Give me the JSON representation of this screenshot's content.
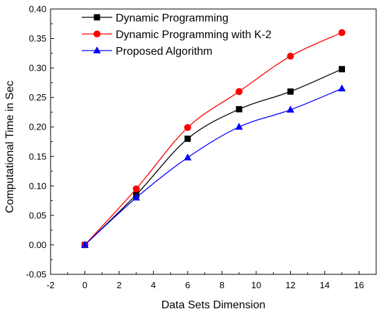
{
  "chart_data": {
    "type": "line",
    "title": "",
    "xlabel": "Data Sets Dimension",
    "ylabel": "Computational Time in Sec",
    "xlim": [
      -2,
      17
    ],
    "ylim": [
      -0.05,
      0.4
    ],
    "x_ticks": [
      "-2",
      "0",
      "2",
      "4",
      "6",
      "8",
      "10",
      "12",
      "14",
      "16"
    ],
    "y_ticks": [
      "-0.05",
      "0.00",
      "0.05",
      "0.10",
      "0.15",
      "0.20",
      "0.25",
      "0.30",
      "0.35",
      "0.40"
    ],
    "x": [
      0,
      3,
      6,
      9,
      12,
      15
    ],
    "legend_position": "top-left",
    "grid": false,
    "series": [
      {
        "name": "Dynamic Programming",
        "values": [
          0.0,
          0.085,
          0.18,
          0.23,
          0.26,
          0.298
        ],
        "color": "#000000",
        "marker": "square"
      },
      {
        "name": "Dynamic Programming with K-2",
        "values": [
          0.0,
          0.095,
          0.199,
          0.26,
          0.32,
          0.36
        ],
        "color": "#ff0000",
        "marker": "circle"
      },
      {
        "name": "Proposed Algorithm",
        "values": [
          0.0,
          0.08,
          0.148,
          0.2,
          0.229,
          0.265
        ],
        "color": "#0000ff",
        "marker": "triangle"
      }
    ]
  }
}
